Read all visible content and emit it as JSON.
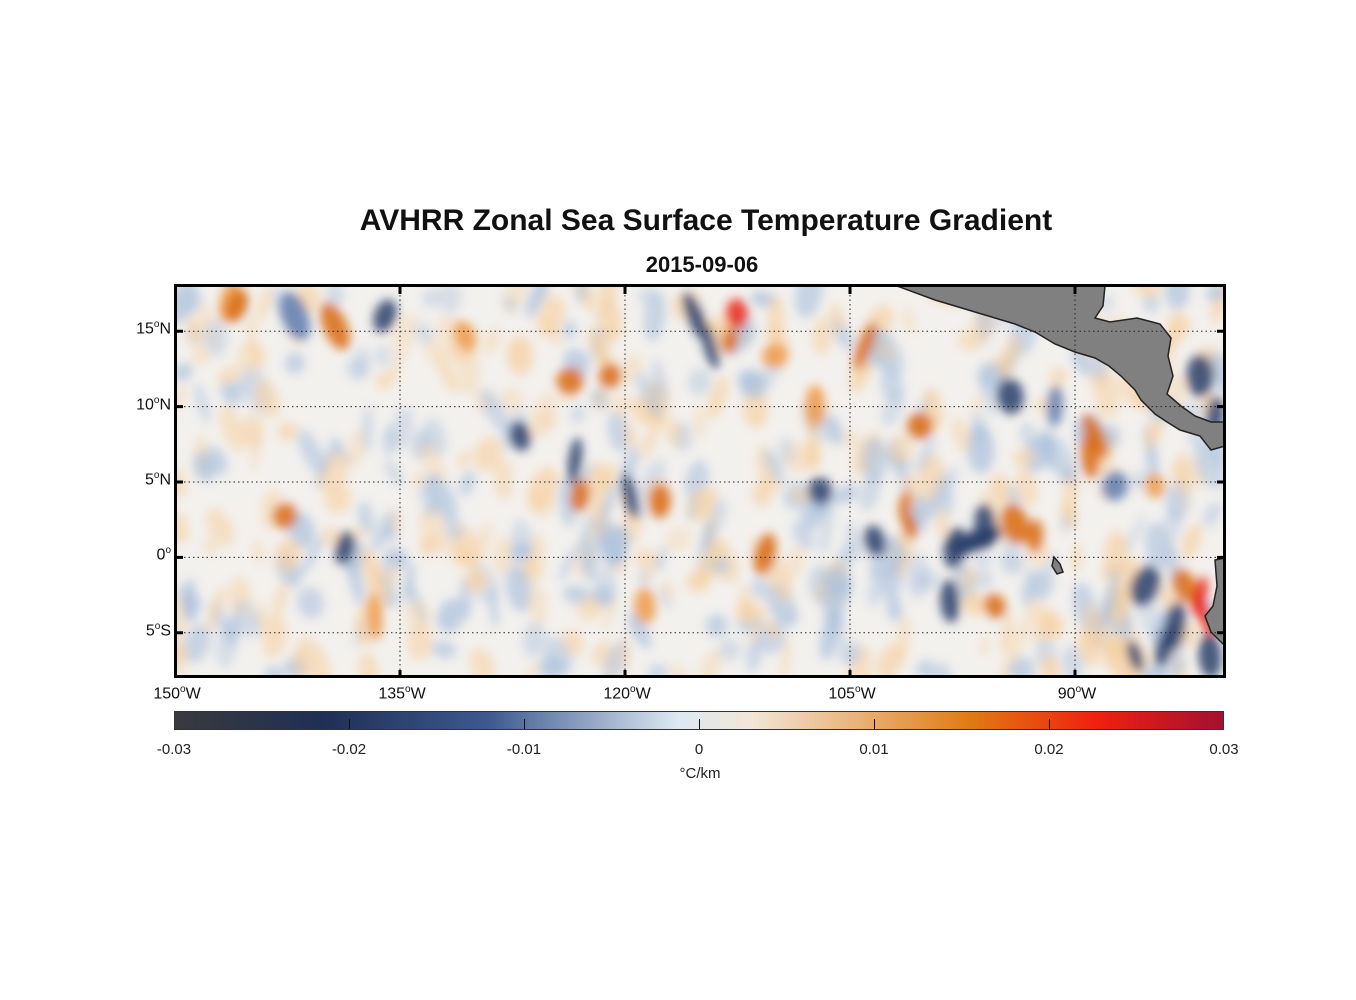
{
  "title": "AVHRR Zonal Sea Surface Temperature Gradient",
  "subtitle": "2015-09-06",
  "map": {
    "lon_range": [
      -150,
      -80
    ],
    "lat_range": [
      -8,
      18
    ],
    "lat_labels": [
      {
        "value": 15,
        "deg": "15",
        "hemi": "N"
      },
      {
        "value": 10,
        "deg": "10",
        "hemi": "N"
      },
      {
        "value": 5,
        "deg": "5",
        "hemi": "N"
      },
      {
        "value": 0,
        "deg": "0",
        "hemi": ""
      },
      {
        "value": -5,
        "deg": "5",
        "hemi": "S"
      }
    ],
    "lon_labels": [
      {
        "value": -150,
        "deg": "150",
        "hemi": "W"
      },
      {
        "value": -135,
        "deg": "135",
        "hemi": "W"
      },
      {
        "value": -120,
        "deg": "120",
        "hemi": "W"
      },
      {
        "value": -105,
        "deg": "105",
        "hemi": "W"
      },
      {
        "value": -90,
        "deg": "90",
        "hemi": "W"
      }
    ],
    "land_color": "#808080",
    "grid": "dotted"
  },
  "colorbar": {
    "range": [
      -0.03,
      0.03
    ],
    "ticks": [
      "-0.03",
      "-0.02",
      "-0.01",
      "0",
      "0.01",
      "0.02",
      "0.03"
    ],
    "tick_values": [
      -0.03,
      -0.02,
      -0.01,
      0,
      0.01,
      0.02,
      0.03
    ],
    "label": "°C/km",
    "colors": [
      "#3a3a3e",
      "#1f2f55",
      "#3d5a8f",
      "#dde8f2",
      "#f2e6d8",
      "#e07a12",
      "#f02010",
      "#a31032"
    ]
  }
}
